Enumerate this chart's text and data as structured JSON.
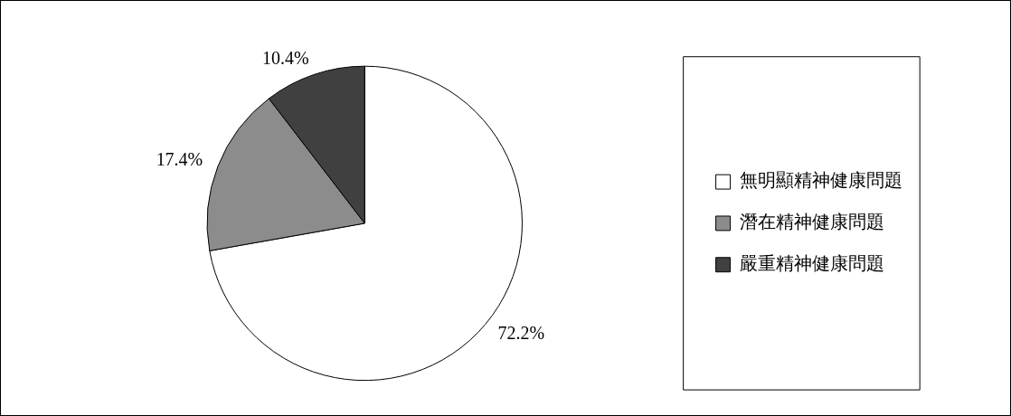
{
  "chart_data": {
    "type": "pie",
    "categories": [
      "無明顯精神健康問題",
      "潛在精神健康問題",
      "嚴重精神健康問題"
    ],
    "values": [
      72.2,
      17.4,
      10.4
    ],
    "colors": [
      "#ffffff",
      "#8c8c8c",
      "#404040"
    ],
    "value_labels": [
      "72.2%",
      "17.4%",
      "10.4%"
    ],
    "legend": "right"
  }
}
